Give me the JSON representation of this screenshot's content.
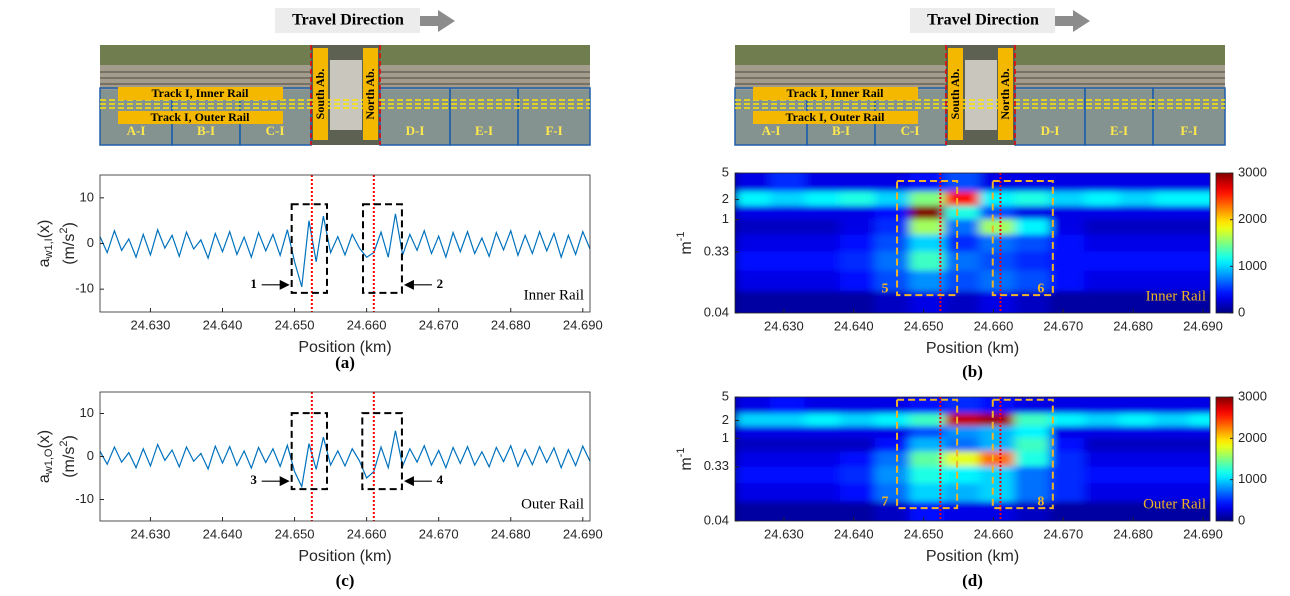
{
  "track_images": [
    {
      "direction": "Travel Direction",
      "inner": "Track I, Inner Rail",
      "outer": "Track I, Outer Rail",
      "south": "South Ab.",
      "north": "North Ab.",
      "sections": [
        "A-I",
        "B-I",
        "C-I",
        "D-I",
        "E-I",
        "F-I"
      ]
    },
    {
      "direction": "Travel Direction",
      "inner": "Track I, Inner Rail",
      "outer": "Track I, Outer Rail",
      "south": "South Ab.",
      "north": "North Ab.",
      "sections": [
        "A-I",
        "B-I",
        "C-I",
        "D-I",
        "E-I",
        "F-I"
      ]
    }
  ],
  "chart_data": [
    {
      "type": "line",
      "caption": "(a)",
      "xlabel": "Position (km)",
      "ylabel": [
        "a",
        "w1,I",
        "(x)"
      ],
      "yunit": [
        "(m/s",
        "2",
        ")"
      ],
      "annotation": "Inner Rail",
      "color": "#0072bd",
      "marker_color": "#ff0000",
      "markers": [
        24.6524,
        24.661
      ],
      "boxes": [
        {
          "label": "1",
          "side": "left",
          "x": [
            24.6496,
            24.6545
          ],
          "y": [
            -10.8,
            8.6
          ]
        },
        {
          "label": "2",
          "side": "right",
          "x": [
            24.6595,
            24.6649
          ],
          "y": [
            -10.8,
            8.6
          ]
        }
      ],
      "xlim": [
        24.623,
        24.691
      ],
      "ylim": [
        -15,
        15
      ],
      "xticks": [
        {
          "value": 24.63,
          "label": "24.630"
        },
        {
          "value": 24.64,
          "label": "24.640"
        },
        {
          "value": 24.65,
          "label": "24.650"
        },
        {
          "value": 24.66,
          "label": "24.660"
        },
        {
          "value": 24.67,
          "label": "24.670"
        },
        {
          "value": 24.68,
          "label": "24.680"
        },
        {
          "value": 24.69,
          "label": "24.690"
        }
      ],
      "yticks": [
        -10,
        0,
        10
      ],
      "x": [
        24.623,
        24.624,
        24.625,
        24.626,
        24.627,
        24.628,
        24.629,
        24.63,
        24.631,
        24.632,
        24.633,
        24.634,
        24.635,
        24.636,
        24.637,
        24.638,
        24.639,
        24.64,
        24.641,
        24.642,
        24.643,
        24.644,
        24.645,
        24.646,
        24.647,
        24.648,
        24.649,
        24.65,
        24.651,
        24.652,
        24.653,
        24.654,
        24.655,
        24.656,
        24.657,
        24.658,
        24.659,
        24.66,
        24.661,
        24.662,
        24.663,
        24.664,
        24.665,
        24.666,
        24.667,
        24.668,
        24.669,
        24.67,
        24.671,
        24.672,
        24.673,
        24.674,
        24.675,
        24.676,
        24.677,
        24.678,
        24.679,
        24.68,
        24.681,
        24.682,
        24.683,
        24.684,
        24.685,
        24.686,
        24.687,
        24.688,
        24.689,
        24.69,
        24.691
      ],
      "values": [
        1.5,
        -2,
        2.8,
        -1.5,
        1,
        -3,
        2,
        -2.5,
        3,
        -1,
        1.8,
        -2.8,
        2.5,
        -1.2,
        0.8,
        -3.2,
        2.2,
        -1.8,
        2.6,
        -2.4,
        1.4,
        -3,
        2.4,
        -1.6,
        2,
        -2.6,
        3,
        -4,
        -9.5,
        5,
        -4,
        6,
        -2,
        1.5,
        -2.5,
        2,
        -1,
        -3,
        -2,
        2.5,
        -3,
        6.5,
        -2.5,
        2,
        -1.5,
        2.8,
        -2.2,
        1.6,
        -3,
        2.4,
        -1.8,
        2.6,
        -2.2,
        1.2,
        -2.8,
        2.4,
        -1.4,
        2.8,
        -2.6,
        1.8,
        -2.2,
        2.6,
        -1.6,
        2.2,
        -3,
        1.8,
        -2.4,
        2.6,
        -1.2
      ]
    },
    {
      "type": "heatmap",
      "caption": "(b)",
      "xlabel": "Position (km)",
      "ylabel": [
        "m",
        "-1"
      ],
      "annotation": "Inner Rail",
      "log": true,
      "marker_color": "#ff0000",
      "markers": [
        24.6524,
        24.661
      ],
      "box_color": "#f0b429",
      "boxes": [
        {
          "label": "5",
          "side": "left",
          "x": [
            24.6462,
            24.6548
          ],
          "y": [
            0.074,
            3.8
          ]
        },
        {
          "label": "6",
          "side": "right",
          "x": [
            24.6599,
            24.6685
          ],
          "y": [
            0.074,
            3.8
          ]
        }
      ],
      "xlim": [
        24.623,
        24.691
      ],
      "ylim": [
        0.04,
        5
      ],
      "clim": [
        0,
        3000
      ],
      "xticks": [
        {
          "value": 24.63,
          "label": "24.630"
        },
        {
          "value": 24.64,
          "label": "24.640"
        },
        {
          "value": 24.65,
          "label": "24.650"
        },
        {
          "value": 24.66,
          "label": "24.660"
        },
        {
          "value": 24.67,
          "label": "24.670"
        },
        {
          "value": 24.68,
          "label": "24.680"
        },
        {
          "value": 24.69,
          "label": "24.690"
        }
      ],
      "yticks": [
        0.04,
        0.33,
        1,
        2,
        5
      ],
      "cticks": [
        0,
        1000,
        2000,
        3000
      ],
      "x": [
        24.6255,
        24.6305,
        24.6355,
        24.6405,
        24.6455,
        24.6505,
        24.6555,
        24.6605,
        24.6655,
        24.6705,
        24.6755,
        24.6805,
        24.6855,
        24.6905
      ],
      "y": [
        3.5,
        2,
        1.3,
        0.8,
        0.45,
        0.25,
        0.12,
        0.06
      ],
      "z": [
        [
          300,
          500,
          300,
          300,
          300,
          400,
          600,
          300,
          300,
          300,
          300,
          300,
          300,
          300
        ],
        [
          1100,
          1000,
          1100,
          1200,
          1000,
          1500,
          2600,
          1100,
          1200,
          1000,
          1100,
          1000,
          1100,
          1100
        ],
        [
          300,
          300,
          300,
          300,
          400,
          3000,
          1200,
          600,
          300,
          300,
          300,
          300,
          300,
          300
        ],
        [
          200,
          200,
          200,
          300,
          500,
          1600,
          700,
          1600,
          1100,
          300,
          200,
          200,
          200,
          200
        ],
        [
          300,
          300,
          300,
          400,
          600,
          1000,
          500,
          700,
          600,
          400,
          300,
          300,
          300,
          300
        ],
        [
          400,
          400,
          400,
          500,
          700,
          1300,
          700,
          600,
          500,
          400,
          400,
          400,
          400,
          400
        ],
        [
          300,
          300,
          300,
          400,
          600,
          800,
          600,
          700,
          600,
          400,
          300,
          300,
          300,
          300
        ],
        [
          100,
          100,
          100,
          100,
          200,
          300,
          200,
          300,
          200,
          100,
          100,
          100,
          100,
          100
        ]
      ]
    },
    {
      "type": "line",
      "caption": "(c)",
      "xlabel": "Position (km)",
      "ylabel": [
        "a",
        "w1,O",
        "(x)"
      ],
      "yunit": [
        "(m/s",
        "2",
        ")"
      ],
      "annotation": "Outer Rail",
      "color": "#0072bd",
      "marker_color": "#ff0000",
      "markers": [
        24.6524,
        24.661
      ],
      "boxes": [
        {
          "label": "3",
          "side": "left",
          "x": [
            24.6496,
            24.6545
          ],
          "y": [
            -7.6,
            10.1
          ]
        },
        {
          "label": "4",
          "side": "right",
          "x": [
            24.6594,
            24.6649
          ],
          "y": [
            -7.6,
            10.1
          ]
        }
      ],
      "xlim": [
        24.623,
        24.691
      ],
      "ylim": [
        -15,
        15
      ],
      "xticks": [
        {
          "value": 24.63,
          "label": "24.630"
        },
        {
          "value": 24.64,
          "label": "24.640"
        },
        {
          "value": 24.65,
          "label": "24.650"
        },
        {
          "value": 24.66,
          "label": "24.660"
        },
        {
          "value": 24.67,
          "label": "24.670"
        },
        {
          "value": 24.68,
          "label": "24.680"
        },
        {
          "value": 24.69,
          "label": "24.690"
        }
      ],
      "yticks": [
        -10,
        0,
        10
      ],
      "x": [
        24.623,
        24.624,
        24.625,
        24.626,
        24.627,
        24.628,
        24.629,
        24.63,
        24.631,
        24.632,
        24.633,
        24.634,
        24.635,
        24.636,
        24.637,
        24.638,
        24.639,
        24.64,
        24.641,
        24.642,
        24.643,
        24.644,
        24.645,
        24.646,
        24.647,
        24.648,
        24.649,
        24.65,
        24.651,
        24.652,
        24.653,
        24.654,
        24.655,
        24.656,
        24.657,
        24.658,
        24.659,
        24.66,
        24.661,
        24.662,
        24.663,
        24.664,
        24.665,
        24.666,
        24.667,
        24.668,
        24.669,
        24.67,
        24.671,
        24.672,
        24.673,
        24.674,
        24.675,
        24.676,
        24.677,
        24.678,
        24.679,
        24.68,
        24.681,
        24.682,
        24.683,
        24.684,
        24.685,
        24.686,
        24.687,
        24.688,
        24.689,
        24.69,
        24.691
      ],
      "values": [
        1.2,
        -1.8,
        2.2,
        -1.3,
        0.9,
        -2.6,
        1.8,
        -2.2,
        2.8,
        -0.9,
        1.5,
        -2.4,
        2.2,
        -1.1,
        0.7,
        -2.9,
        2.4,
        -1.5,
        2.3,
        -2.1,
        1.3,
        -2.7,
        2.1,
        -1.4,
        1.8,
        -2.3,
        2.6,
        -3.5,
        -7,
        3,
        -3,
        4.5,
        -2,
        1.3,
        -2.2,
        1.8,
        -1,
        -5,
        -3.5,
        2.2,
        -2.6,
        6,
        -2.2,
        1.8,
        -1.3,
        2.5,
        -2,
        1.4,
        -2.6,
        2.1,
        -1.6,
        2.3,
        -2,
        1.1,
        -2.4,
        2.1,
        -1.2,
        2.5,
        -2.3,
        1.6,
        -1.9,
        2.3,
        -1.4,
        2,
        -2.6,
        1.6,
        -2.1,
        2.4,
        -1.1
      ]
    },
    {
      "type": "heatmap",
      "caption": "(d)",
      "xlabel": "Position (km)",
      "ylabel": [
        "m",
        "-1"
      ],
      "annotation": "Outer Rail",
      "log": true,
      "marker_color": "#ff0000",
      "markers": [
        24.6524,
        24.661
      ],
      "box_color": "#f0b429",
      "boxes": [
        {
          "label": "7",
          "side": "left",
          "x": [
            24.6462,
            24.6548
          ],
          "y": [
            0.066,
            4.5
          ]
        },
        {
          "label": "8",
          "side": "right",
          "x": [
            24.6599,
            24.6685
          ],
          "y": [
            0.066,
            4.5
          ]
        }
      ],
      "xlim": [
        24.623,
        24.691
      ],
      "ylim": [
        0.04,
        5
      ],
      "clim": [
        0,
        3000
      ],
      "xticks": [
        {
          "value": 24.63,
          "label": "24.630"
        },
        {
          "value": 24.64,
          "label": "24.640"
        },
        {
          "value": 24.65,
          "label": "24.650"
        },
        {
          "value": 24.66,
          "label": "24.660"
        },
        {
          "value": 24.67,
          "label": "24.670"
        },
        {
          "value": 24.68,
          "label": "24.680"
        },
        {
          "value": 24.69,
          "label": "24.690"
        }
      ],
      "yticks": [
        0.04,
        0.33,
        1,
        2,
        5
      ],
      "cticks": [
        0,
        1000,
        2000,
        3000
      ],
      "x": [
        24.6255,
        24.6305,
        24.6355,
        24.6405,
        24.6455,
        24.6505,
        24.6555,
        24.6605,
        24.6655,
        24.6705,
        24.6755,
        24.6805,
        24.6855,
        24.6905
      ],
      "y": [
        3.5,
        2,
        1.3,
        0.8,
        0.45,
        0.25,
        0.12,
        0.06
      ],
      "z": [
        [
          300,
          400,
          300,
          300,
          300,
          400,
          500,
          400,
          300,
          300,
          300,
          300,
          300,
          300
        ],
        [
          1000,
          1000,
          1100,
          1000,
          1100,
          1300,
          2800,
          2900,
          1300,
          1100,
          1000,
          1100,
          1000,
          1100
        ],
        [
          300,
          300,
          300,
          300,
          300,
          600,
          800,
          900,
          1100,
          300,
          300,
          300,
          300,
          300
        ],
        [
          200,
          200,
          200,
          200,
          400,
          900,
          700,
          900,
          1300,
          400,
          200,
          200,
          200,
          200
        ],
        [
          300,
          300,
          300,
          400,
          700,
          1400,
          1800,
          2300,
          1200,
          500,
          300,
          300,
          300,
          300
        ],
        [
          400,
          400,
          400,
          500,
          800,
          1200,
          1100,
          1000,
          700,
          500,
          400,
          400,
          400,
          400
        ],
        [
          300,
          300,
          300,
          400,
          700,
          1000,
          900,
          1000,
          700,
          500,
          300,
          300,
          300,
          300
        ],
        [
          100,
          100,
          100,
          100,
          200,
          400,
          300,
          300,
          200,
          100,
          100,
          100,
          100,
          100
        ]
      ]
    }
  ]
}
